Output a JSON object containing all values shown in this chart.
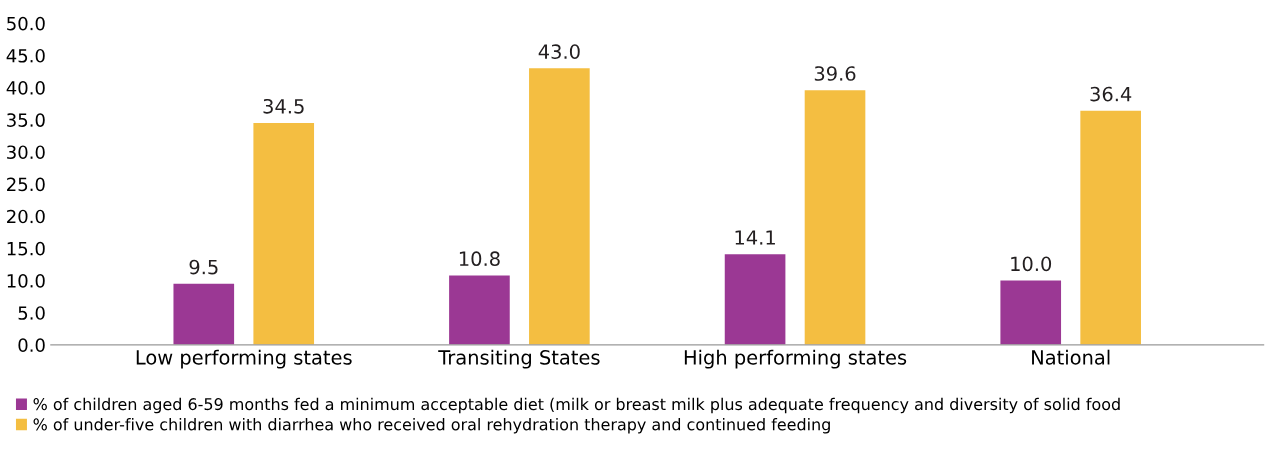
{
  "chart_data": {
    "type": "bar",
    "categories": [
      "Low performing states",
      "Transiting States",
      "High performing states",
      "National"
    ],
    "series": [
      {
        "name": "% of children aged 6-59 months fed a minimum acceptable diet (milk or breast milk plus adequate frequency and diversity of solid food",
        "color": "#9b3894",
        "values": [
          9.5,
          10.8,
          14.1,
          10.0
        ],
        "value_labels": [
          "9.5",
          "10.8",
          "14.1",
          "10.0"
        ]
      },
      {
        "name": "% of under-five children with diarrhea who received oral rehydration therapy and continued feeding",
        "color": "#f4be41",
        "values": [
          34.5,
          43.0,
          39.6,
          36.4
        ],
        "value_labels": [
          "34.5",
          "43.0",
          "39.6",
          "36.4"
        ]
      }
    ],
    "ylim": [
      0,
      50
    ],
    "yticks": [
      {
        "value": 0,
        "label": "0.0"
      },
      {
        "value": 5,
        "label": "5.0"
      },
      {
        "value": 10,
        "label": "10.0"
      },
      {
        "value": 15,
        "label": "15.0"
      },
      {
        "value": 20,
        "label": "20.0"
      },
      {
        "value": 25,
        "label": "25.0"
      },
      {
        "value": 30,
        "label": "30.0"
      },
      {
        "value": 35,
        "label": "35.0"
      },
      {
        "value": 40,
        "label": "40.0"
      },
      {
        "value": 45,
        "label": "45.0"
      },
      {
        "value": 50,
        "label": "50.0"
      }
    ],
    "grid": false,
    "legend": "bottom"
  }
}
